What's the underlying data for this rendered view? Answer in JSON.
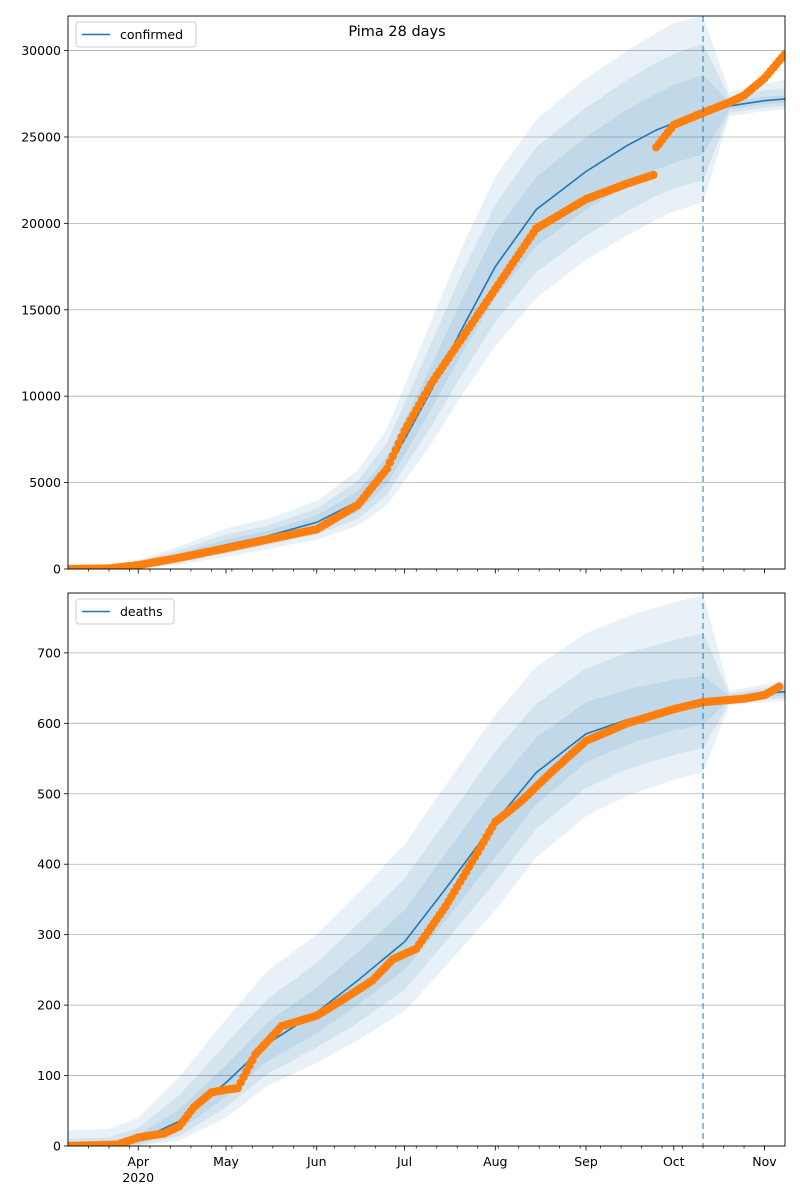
{
  "title": "Pima 28 days",
  "colors": {
    "model_line": "#1f77b4",
    "observed_points": "#ff7f0e",
    "band": "#1f77b4",
    "gridline": "#b0b0b0",
    "cutoff_line": "#1f77b4"
  },
  "chart_data": [
    {
      "type": "line",
      "title": "Pima 28 days",
      "legend": {
        "label": "confirmed",
        "position": "top-left"
      },
      "grid": "horizontal",
      "x_range": [
        "2020-03-08",
        "2020-11-08"
      ],
      "x_ticks": [
        {
          "date": "2020-04-01",
          "label": ""
        },
        {
          "date": "2020-05-01",
          "label": ""
        },
        {
          "date": "2020-06-01",
          "label": ""
        },
        {
          "date": "2020-07-01",
          "label": ""
        },
        {
          "date": "2020-08-01",
          "label": ""
        },
        {
          "date": "2020-09-01",
          "label": ""
        },
        {
          "date": "2020-10-01",
          "label": ""
        },
        {
          "date": "2020-11-01",
          "label": ""
        }
      ],
      "ylim": [
        0,
        32000
      ],
      "y_ticks": [
        0,
        5000,
        10000,
        15000,
        20000,
        25000,
        30000
      ],
      "forecast_start": "2020-10-11",
      "model": {
        "x": [
          "2020-03-08",
          "2020-03-22",
          "2020-04-01",
          "2020-04-15",
          "2020-05-01",
          "2020-05-15",
          "2020-06-01",
          "2020-06-15",
          "2020-06-25",
          "2020-07-01",
          "2020-07-10",
          "2020-07-20",
          "2020-08-01",
          "2020-08-15",
          "2020-09-01",
          "2020-09-15",
          "2020-09-25",
          "2020-10-01",
          "2020-10-11",
          "2020-10-20",
          "2020-11-01",
          "2020-11-08"
        ],
        "median": [
          0,
          50,
          250,
          700,
          1400,
          1900,
          2700,
          3900,
          5700,
          7500,
          10300,
          13700,
          17500,
          20800,
          23000,
          24500,
          25400,
          25800,
          26400,
          26800,
          27100,
          27200
        ],
        "bands": [
          {
            "lower": [
              0,
              20,
              150,
              500,
              1100,
              1600,
              2300,
              3300,
              4900,
              6600,
              9200,
              12300,
              15700,
              18700,
              20800,
              22200,
              23100,
              23500,
              24000,
              26600,
              26900,
              27000
            ],
            "upper": [
              0,
              80,
              330,
              900,
              1700,
              2200,
              3100,
              4500,
              6500,
              8600,
              11700,
              15400,
              19500,
              22700,
              25000,
              26600,
              27500,
              28000,
              28600,
              27000,
              27350,
              27400
            ]
          },
          {
            "lower": [
              0,
              10,
              100,
              380,
              900,
              1380,
              2000,
              2900,
              4300,
              5900,
              8200,
              11100,
              14300,
              17200,
              19300,
              20700,
              21600,
              22000,
              22500,
              26400,
              26700,
              26800
            ],
            "upper": [
              0,
              110,
              420,
              1080,
              2000,
              2500,
              3500,
              5100,
              7300,
              9600,
              13000,
              16900,
              21100,
              24400,
              26700,
              28300,
              29300,
              29800,
              30400,
              27300,
              27700,
              27800
            ]
          },
          {
            "lower": [
              0,
              5,
              60,
              260,
              700,
              1150,
              1700,
              2500,
              3700,
              5100,
              7200,
              9900,
              12900,
              15700,
              17900,
              19300,
              20200,
              20700,
              21200,
              26200,
              26500,
              26600
            ],
            "upper": [
              0,
              150,
              520,
              1300,
              2350,
              2900,
              3950,
              5700,
              8100,
              10600,
              14300,
              18400,
              22700,
              26000,
              28400,
              30000,
              31000,
              31600,
              32000,
              27600,
              28100,
              28300
            ]
          }
        ]
      },
      "observed": {
        "dates": [
          "2020-03-08",
          "2020-03-22",
          "2020-04-01",
          "2020-04-15",
          "2020-05-01",
          "2020-05-15",
          "2020-06-01",
          "2020-06-15",
          "2020-06-25",
          "2020-07-01",
          "2020-07-10",
          "2020-07-20",
          "2020-08-01",
          "2020-08-15",
          "2020-09-01",
          "2020-09-15",
          "2020-09-24",
          "2020-09-25",
          "2020-10-01",
          "2020-10-11",
          "2020-10-20",
          "2020-10-25",
          "2020-11-01",
          "2020-11-08"
        ],
        "values": [
          0,
          30,
          220,
          650,
          1200,
          1700,
          2300,
          3700,
          5800,
          8000,
          10700,
          13200,
          16200,
          19700,
          21400,
          22300,
          22800,
          24400,
          25700,
          26400,
          27000,
          27400,
          28400,
          29800
        ]
      }
    },
    {
      "type": "line",
      "legend": {
        "label": "deaths",
        "position": "top-left"
      },
      "grid": "horizontal",
      "x_range": [
        "2020-03-08",
        "2020-11-08"
      ],
      "x_ticks": [
        {
          "date": "2020-04-01",
          "label": "Apr",
          "sublabel": "2020"
        },
        {
          "date": "2020-05-01",
          "label": "May"
        },
        {
          "date": "2020-06-01",
          "label": "Jun"
        },
        {
          "date": "2020-07-01",
          "label": "Jul"
        },
        {
          "date": "2020-08-01",
          "label": "Aug"
        },
        {
          "date": "2020-09-01",
          "label": "Sep"
        },
        {
          "date": "2020-10-01",
          "label": "Oct"
        },
        {
          "date": "2020-11-01",
          "label": "Nov"
        }
      ],
      "ylim": [
        0,
        785
      ],
      "y_ticks": [
        0,
        100,
        200,
        300,
        400,
        500,
        600,
        700
      ],
      "forecast_start": "2020-10-11",
      "model": {
        "x": [
          "2020-03-08",
          "2020-03-22",
          "2020-04-01",
          "2020-04-15",
          "2020-05-01",
          "2020-05-15",
          "2020-06-01",
          "2020-06-15",
          "2020-07-01",
          "2020-07-15",
          "2020-08-01",
          "2020-08-15",
          "2020-09-01",
          "2020-09-15",
          "2020-10-01",
          "2020-10-11",
          "2020-10-20",
          "2020-11-01",
          "2020-11-08"
        ],
        "median": [
          0,
          1,
          8,
          35,
          90,
          145,
          190,
          235,
          290,
          365,
          460,
          530,
          585,
          605,
          622,
          632,
          636,
          642,
          645
        ],
        "bands": [
          {
            "lower": [
              0,
              0,
              3,
              22,
              70,
              120,
              160,
              200,
              250,
              320,
              410,
              485,
              545,
              570,
              590,
              598,
              633,
              638,
              640
            ],
            "upper": [
              4,
              6,
              16,
              52,
              115,
              175,
              225,
              275,
              335,
              415,
              510,
              580,
              630,
              648,
              662,
              668,
              639,
              646,
              650
            ]
          },
          {
            "lower": [
              0,
              0,
              1,
              14,
              55,
              102,
              140,
              175,
              222,
              290,
              375,
              450,
              508,
              535,
              555,
              565,
              630,
              634,
              636
            ],
            "upper": [
              10,
              12,
              26,
              72,
              145,
              208,
              260,
              315,
              380,
              460,
              560,
              628,
              678,
              700,
              718,
              728,
              642,
              650,
              655
            ]
          },
          {
            "lower": [
              0,
              0,
              0,
              8,
              40,
              85,
              118,
              150,
              192,
              255,
              335,
              410,
              468,
              497,
              520,
              530,
              626,
              630,
              632
            ],
            "upper": [
              22,
              24,
              40,
              98,
              180,
              248,
              300,
              358,
              428,
              512,
              612,
              680,
              728,
              752,
              772,
              782,
              646,
              655,
              661
            ]
          }
        ]
      },
      "observed": {
        "dates": [
          "2020-03-08",
          "2020-03-25",
          "2020-04-01",
          "2020-04-10",
          "2020-04-15",
          "2020-04-20",
          "2020-04-26",
          "2020-05-01",
          "2020-05-05",
          "2020-05-11",
          "2020-05-20",
          "2020-06-01",
          "2020-06-10",
          "2020-06-20",
          "2020-06-27",
          "2020-07-05",
          "2020-07-15",
          "2020-07-25",
          "2020-08-01",
          "2020-08-10",
          "2020-08-20",
          "2020-09-01",
          "2020-09-15",
          "2020-10-01",
          "2020-10-11",
          "2020-10-25",
          "2020-11-01",
          "2020-11-06"
        ],
        "values": [
          0,
          2,
          12,
          18,
          28,
          55,
          76,
          80,
          82,
          130,
          170,
          185,
          208,
          235,
          265,
          280,
          340,
          410,
          460,
          490,
          530,
          575,
          600,
          620,
          630,
          635,
          640,
          652
        ]
      }
    }
  ]
}
